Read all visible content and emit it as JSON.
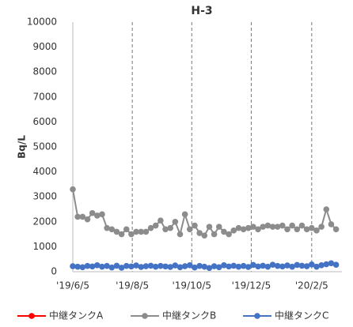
{
  "chart_data": {
    "type": "line",
    "title": "H-3",
    "y_label": "Bq/L",
    "x": [
      "2019-06-05",
      "2019-06-10",
      "2019-06-15",
      "2019-06-20",
      "2019-06-25",
      "2019-06-30",
      "2019-07-05",
      "2019-07-10",
      "2019-07-15",
      "2019-07-20",
      "2019-07-25",
      "2019-07-30",
      "2019-08-04",
      "2019-08-09",
      "2019-08-14",
      "2019-08-19",
      "2019-08-24",
      "2019-08-29",
      "2019-09-03",
      "2019-09-08",
      "2019-09-13",
      "2019-09-18",
      "2019-09-23",
      "2019-09-28",
      "2019-10-03",
      "2019-10-08",
      "2019-10-13",
      "2019-10-18",
      "2019-10-23",
      "2019-10-28",
      "2019-11-02",
      "2019-11-07",
      "2019-11-12",
      "2019-11-17",
      "2019-11-22",
      "2019-11-27",
      "2019-12-02",
      "2019-12-07",
      "2019-12-12",
      "2019-12-17",
      "2019-12-22",
      "2019-12-27",
      "2020-01-01",
      "2020-01-06",
      "2020-01-11",
      "2020-01-16",
      "2020-01-21",
      "2020-01-26",
      "2020-01-31",
      "2020-02-05",
      "2020-02-10",
      "2020-02-15",
      "2020-02-20",
      "2020-02-25",
      "2020-03-01"
    ],
    "series": [
      {
        "name": "中継タンクA",
        "color": "#ff0000",
        "values": [
          null,
          null,
          null,
          null,
          null,
          null,
          null,
          null,
          null,
          null,
          null,
          null,
          null,
          null,
          null,
          null,
          null,
          null,
          null,
          null,
          null,
          null,
          null,
          null,
          null,
          null,
          null,
          null,
          null,
          null,
          null,
          null,
          null,
          null,
          null,
          null,
          null,
          null,
          null,
          null,
          null,
          null,
          null,
          null,
          null,
          null,
          null,
          null,
          null,
          null,
          null,
          null,
          null,
          null,
          null
        ]
      },
      {
        "name": "中継タンクB",
        "color": "#8c8c8c",
        "values": [
          3300,
          2200,
          2200,
          2100,
          2350,
          2250,
          2300,
          1750,
          1700,
          1600,
          1500,
          1700,
          1500,
          1600,
          1600,
          1600,
          1750,
          1850,
          2050,
          1700,
          1750,
          2000,
          1500,
          2300,
          1700,
          1850,
          1550,
          1450,
          1800,
          1500,
          1800,
          1600,
          1500,
          1650,
          1750,
          1700,
          1750,
          1800,
          1700,
          1800,
          1850,
          1800,
          1800,
          1850,
          1700,
          1850,
          1700,
          1850,
          1700,
          1750,
          1650,
          1800,
          2500,
          1900,
          1700
        ]
      },
      {
        "name": "中継タンクC",
        "color": "#4472c4",
        "values": [
          220,
          200,
          180,
          230,
          210,
          260,
          200,
          230,
          170,
          240,
          160,
          230,
          210,
          250,
          190,
          220,
          240,
          200,
          230,
          210,
          190,
          250,
          180,
          220,
          260,
          170,
          230,
          200,
          150,
          220,
          180,
          260,
          210,
          240,
          200,
          230,
          190,
          270,
          210,
          240,
          200,
          280,
          230,
          210,
          250,
          200,
          270,
          240,
          220,
          290,
          200,
          260,
          300,
          340,
          280
        ]
      }
    ],
    "xlim": [
      "2019-06-05",
      "2020-03-07"
    ],
    "xticks": [
      {
        "value": "2019-06-05",
        "label": "'19/6/5"
      },
      {
        "value": "2019-08-05",
        "label": "'19/8/5"
      },
      {
        "value": "2019-10-05",
        "label": "'19/10/5"
      },
      {
        "value": "2019-12-05",
        "label": "'19/12/5"
      },
      {
        "value": "2020-02-05",
        "label": "'20/2/5"
      }
    ],
    "ylim": [
      0,
      10000
    ],
    "yticks": [
      0,
      1000,
      2000,
      3000,
      4000,
      5000,
      6000,
      7000,
      8000,
      9000,
      10000
    ],
    "x_grid": true,
    "legend": "bottom"
  }
}
